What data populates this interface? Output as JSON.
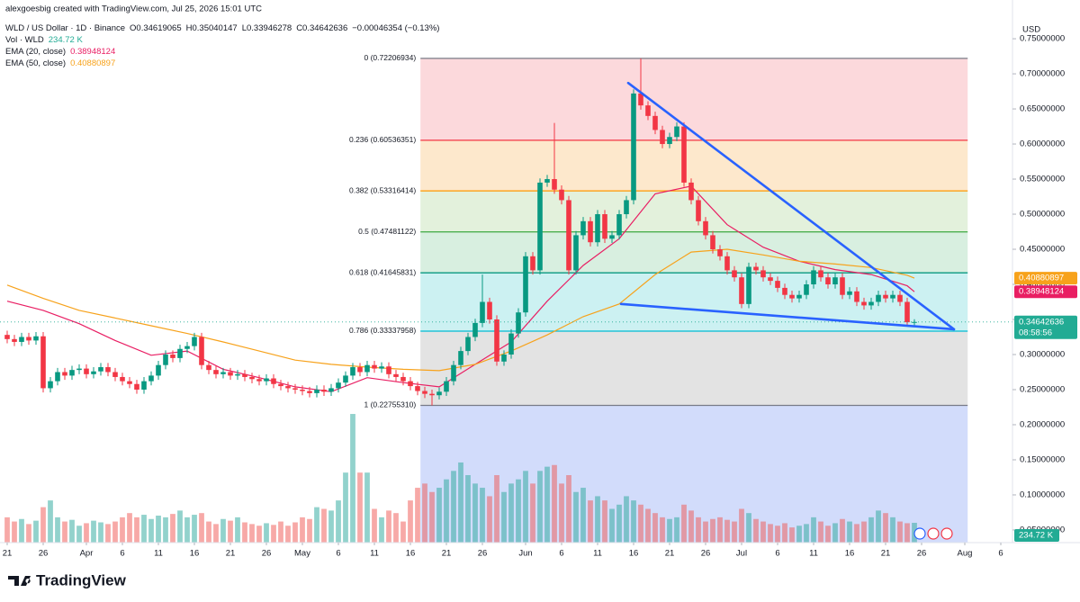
{
  "chart_data": {
    "type": "candlestick",
    "watermark": "alexgoesbig created with TradingView.com, Jul 25, 2026 15:01 UTC",
    "title": "WLD / US Dollar · 1D · Binance",
    "ohlc_legend": [
      "O0.34619065",
      "H0.35040147",
      "L0.33946278",
      "C0.34642636",
      "−0.00046354 (−0.13%)"
    ],
    "vol_legend": {
      "name": "Vol · WLD",
      "value": "234.72 K"
    },
    "currency": "USD",
    "brand": "TradingView",
    "countdown": "08:58:56",
    "up_color": "#089981",
    "down_color": "#f23645",
    "volume_up_color": "rgba(38,166,154,0.5)",
    "volume_down_color": "rgba(239,83,80,0.5)",
    "xlim": [
      -1,
      139.625
    ],
    "ylim": [
      0.032,
      0.777
    ],
    "vlim": [
      0,
      1600
    ],
    "xticks": [
      {
        "value": 0,
        "label": "21"
      },
      {
        "value": 5,
        "label": "26"
      },
      {
        "value": 11,
        "label": "Apr"
      },
      {
        "value": 16,
        "label": "6"
      },
      {
        "value": 21,
        "label": "11"
      },
      {
        "value": 26,
        "label": "16"
      },
      {
        "value": 31,
        "label": "21"
      },
      {
        "value": 36,
        "label": "26"
      },
      {
        "value": 41,
        "label": "May"
      },
      {
        "value": 46,
        "label": "6"
      },
      {
        "value": 51,
        "label": "11"
      },
      {
        "value": 56,
        "label": "16"
      },
      {
        "value": 61,
        "label": "21"
      },
      {
        "value": 66,
        "label": "26"
      },
      {
        "value": 72,
        "label": "Jun"
      },
      {
        "value": 77,
        "label": "6"
      },
      {
        "value": 82,
        "label": "11"
      },
      {
        "value": 87,
        "label": "16"
      },
      {
        "value": 92,
        "label": "21"
      },
      {
        "value": 97,
        "label": "26"
      },
      {
        "value": 102,
        "label": "Jul"
      },
      {
        "value": 107,
        "label": "6"
      },
      {
        "value": 112,
        "label": "11"
      },
      {
        "value": 117,
        "label": "16"
      },
      {
        "value": 122,
        "label": "21"
      },
      {
        "value": 127,
        "label": "26"
      },
      {
        "value": 133,
        "label": "Aug"
      },
      {
        "value": 138,
        "label": "6"
      }
    ],
    "yticks": [
      {
        "value": 0.05,
        "label": "0.05000000"
      },
      {
        "value": 0.1,
        "label": "0.10000000"
      },
      {
        "value": 0.15,
        "label": "0.15000000"
      },
      {
        "value": 0.2,
        "label": "0.20000000"
      },
      {
        "value": 0.25,
        "label": "0.25000000"
      },
      {
        "value": 0.3,
        "label": "0.30000000"
      },
      {
        "value": 0.35,
        "label": "0.35000000"
      },
      {
        "value": 0.4,
        "label": "0.40000000"
      },
      {
        "value": 0.45,
        "label": "0.45000000"
      },
      {
        "value": 0.5,
        "label": "0.50000000"
      },
      {
        "value": 0.55,
        "label": "0.55000000"
      },
      {
        "value": 0.6,
        "label": "0.60000000"
      },
      {
        "value": 0.65,
        "label": "0.65000000"
      },
      {
        "value": 0.7,
        "label": "0.70000000"
      },
      {
        "value": 0.75,
        "label": "0.75000000"
      }
    ],
    "x": [
      0,
      1,
      2,
      3,
      4,
      5,
      6,
      7,
      8,
      9,
      10,
      11,
      12,
      13,
      14,
      15,
      16,
      17,
      18,
      19,
      20,
      21,
      22,
      23,
      24,
      25,
      26,
      27,
      28,
      29,
      30,
      31,
      32,
      33,
      34,
      35,
      36,
      37,
      38,
      39,
      40,
      41,
      42,
      43,
      44,
      45,
      46,
      47,
      48,
      49,
      50,
      51,
      52,
      53,
      54,
      55,
      56,
      57,
      58,
      59,
      60,
      61,
      62,
      63,
      64,
      65,
      66,
      67,
      68,
      69,
      70,
      71,
      72,
      73,
      74,
      75,
      76,
      77,
      78,
      79,
      80,
      81,
      82,
      83,
      84,
      85,
      86,
      87,
      88,
      89,
      90,
      91,
      92,
      93,
      94,
      95,
      96,
      97,
      98,
      99,
      100,
      101,
      102,
      103,
      104,
      105,
      106,
      107,
      108,
      109,
      110,
      111,
      112,
      113,
      114,
      115,
      116,
      117,
      118,
      119,
      120,
      121,
      122,
      123,
      124,
      125,
      126
    ],
    "open": [
      0.328,
      0.322,
      0.318,
      0.325,
      0.32,
      0.326,
      0.252,
      0.262,
      0.275,
      0.27,
      0.278,
      0.28,
      0.272,
      0.276,
      0.282,
      0.275,
      0.268,
      0.262,
      0.258,
      0.25,
      0.262,
      0.27,
      0.285,
      0.3,
      0.295,
      0.308,
      0.312,
      0.325,
      0.285,
      0.278,
      0.272,
      0.275,
      0.27,
      0.272,
      0.268,
      0.265,
      0.262,
      0.266,
      0.258,
      0.255,
      0.252,
      0.25,
      0.248,
      0.245,
      0.25,
      0.247,
      0.252,
      0.26,
      0.27,
      0.282,
      0.275,
      0.285,
      0.28,
      0.283,
      0.272,
      0.268,
      0.262,
      0.255,
      0.248,
      0.244,
      0.242,
      0.247,
      0.262,
      0.285,
      0.305,
      0.325,
      0.345,
      0.375,
      0.35,
      0.29,
      0.3,
      0.33,
      0.36,
      0.44,
      0.42,
      0.545,
      0.55,
      0.535,
      0.52,
      0.42,
      0.47,
      0.49,
      0.46,
      0.5,
      0.465,
      0.47,
      0.5,
      0.52,
      0.672,
      0.655,
      0.64,
      0.62,
      0.6,
      0.61,
      0.625,
      0.545,
      0.52,
      0.49,
      0.47,
      0.45,
      0.44,
      0.42,
      0.41,
      0.372,
      0.425,
      0.42,
      0.41,
      0.405,
      0.395,
      0.385,
      0.38,
      0.385,
      0.4,
      0.42,
      0.41,
      0.4,
      0.41,
      0.385,
      0.39,
      0.375,
      0.37,
      0.375,
      0.385,
      0.38,
      0.385,
      0.375,
      0.34619065
    ],
    "high": [
      0.334,
      0.328,
      0.331,
      0.331,
      0.332,
      0.332,
      0.268,
      0.281,
      0.281,
      0.284,
      0.286,
      0.286,
      0.282,
      0.288,
      0.288,
      0.281,
      0.274,
      0.268,
      0.264,
      0.268,
      0.276,
      0.291,
      0.306,
      0.306,
      0.314,
      0.318,
      0.331,
      0.331,
      0.291,
      0.284,
      0.281,
      0.281,
      0.278,
      0.278,
      0.274,
      0.271,
      0.272,
      0.272,
      0.264,
      0.261,
      0.258,
      0.256,
      0.254,
      0.256,
      0.256,
      0.258,
      0.266,
      0.276,
      0.288,
      0.288,
      0.291,
      0.291,
      0.289,
      0.289,
      0.278,
      0.274,
      0.268,
      0.261,
      0.254,
      0.25,
      0.253,
      0.268,
      0.291,
      0.311,
      0.331,
      0.351,
      0.414,
      0.381,
      0.356,
      0.306,
      0.336,
      0.366,
      0.446,
      0.446,
      0.551,
      0.556,
      0.63,
      0.541,
      0.526,
      0.476,
      0.496,
      0.496,
      0.506,
      0.506,
      0.476,
      0.506,
      0.526,
      0.678,
      0.72206934,
      0.661,
      0.646,
      0.626,
      0.616,
      0.631,
      0.631,
      0.551,
      0.526,
      0.496,
      0.476,
      0.456,
      0.446,
      0.426,
      0.416,
      0.431,
      0.431,
      0.426,
      0.416,
      0.411,
      0.401,
      0.391,
      0.391,
      0.406,
      0.426,
      0.426,
      0.416,
      0.416,
      0.416,
      0.396,
      0.396,
      0.381,
      0.381,
      0.391,
      0.391,
      0.391,
      0.391,
      0.381,
      0.35040147
    ],
    "low": [
      0.316,
      0.312,
      0.312,
      0.314,
      0.314,
      0.246,
      0.246,
      0.256,
      0.264,
      0.264,
      0.272,
      0.266,
      0.266,
      0.27,
      0.269,
      0.262,
      0.256,
      0.252,
      0.244,
      0.244,
      0.256,
      0.264,
      0.279,
      0.289,
      0.289,
      0.302,
      0.306,
      0.279,
      0.272,
      0.266,
      0.266,
      0.264,
      0.264,
      0.262,
      0.259,
      0.256,
      0.256,
      0.252,
      0.249,
      0.246,
      0.244,
      0.242,
      0.239,
      0.239,
      0.241,
      0.241,
      0.246,
      0.254,
      0.264,
      0.269,
      0.269,
      0.274,
      0.274,
      0.266,
      0.262,
      0.256,
      0.249,
      0.242,
      0.238,
      0.2276,
      0.236,
      0.241,
      0.256,
      0.279,
      0.299,
      0.319,
      0.339,
      0.344,
      0.284,
      0.284,
      0.294,
      0.324,
      0.354,
      0.414,
      0.414,
      0.539,
      0.529,
      0.514,
      0.414,
      0.414,
      0.464,
      0.454,
      0.454,
      0.459,
      0.459,
      0.464,
      0.494,
      0.514,
      0.649,
      0.634,
      0.614,
      0.594,
      0.594,
      0.604,
      0.539,
      0.514,
      0.484,
      0.464,
      0.444,
      0.434,
      0.414,
      0.404,
      0.366,
      0.366,
      0.414,
      0.404,
      0.399,
      0.389,
      0.379,
      0.374,
      0.374,
      0.379,
      0.394,
      0.404,
      0.394,
      0.394,
      0.379,
      0.379,
      0.369,
      0.364,
      0.364,
      0.369,
      0.374,
      0.374,
      0.369,
      0.34,
      0.33946278
    ],
    "close": [
      0.322,
      0.318,
      0.325,
      0.32,
      0.326,
      0.252,
      0.262,
      0.275,
      0.27,
      0.278,
      0.28,
      0.272,
      0.276,
      0.282,
      0.275,
      0.268,
      0.262,
      0.258,
      0.25,
      0.262,
      0.27,
      0.285,
      0.3,
      0.295,
      0.308,
      0.312,
      0.325,
      0.285,
      0.278,
      0.272,
      0.275,
      0.27,
      0.272,
      0.268,
      0.265,
      0.262,
      0.266,
      0.258,
      0.255,
      0.252,
      0.25,
      0.248,
      0.245,
      0.25,
      0.247,
      0.252,
      0.26,
      0.27,
      0.282,
      0.275,
      0.285,
      0.28,
      0.283,
      0.272,
      0.268,
      0.262,
      0.255,
      0.248,
      0.244,
      0.242,
      0.247,
      0.262,
      0.285,
      0.305,
      0.325,
      0.345,
      0.375,
      0.35,
      0.29,
      0.3,
      0.33,
      0.36,
      0.44,
      0.42,
      0.545,
      0.55,
      0.535,
      0.52,
      0.42,
      0.47,
      0.49,
      0.46,
      0.5,
      0.465,
      0.47,
      0.5,
      0.52,
      0.672,
      0.655,
      0.64,
      0.62,
      0.6,
      0.61,
      0.625,
      0.545,
      0.52,
      0.49,
      0.47,
      0.45,
      0.44,
      0.42,
      0.41,
      0.372,
      0.425,
      0.42,
      0.41,
      0.405,
      0.395,
      0.385,
      0.38,
      0.385,
      0.4,
      0.42,
      0.41,
      0.4,
      0.41,
      0.385,
      0.39,
      0.375,
      0.37,
      0.375,
      0.385,
      0.38,
      0.385,
      0.375,
      0.346,
      0.34642636
    ],
    "volume": [
      300,
      250,
      280,
      220,
      260,
      420,
      500,
      300,
      250,
      270,
      200,
      230,
      260,
      240,
      220,
      250,
      300,
      350,
      300,
      330,
      280,
      320,
      300,
      340,
      380,
      300,
      330,
      350,
      250,
      220,
      280,
      260,
      300,
      240,
      220,
      200,
      230,
      210,
      250,
      200,
      240,
      300,
      280,
      420,
      400,
      380,
      500,
      830,
      1525,
      830,
      830,
      400,
      300,
      380,
      350,
      250,
      500,
      650,
      700,
      600,
      650,
      750,
      850,
      950,
      800,
      700,
      650,
      550,
      800,
      600,
      700,
      750,
      850,
      700,
      850,
      900,
      920,
      700,
      800,
      600,
      650,
      500,
      550,
      500,
      400,
      450,
      550,
      500,
      450,
      400,
      350,
      300,
      280,
      300,
      450,
      380,
      300,
      250,
      280,
      300,
      270,
      250,
      400,
      350,
      280,
      250,
      220,
      200,
      230,
      180,
      200,
      220,
      300,
      250,
      200,
      230,
      280,
      250,
      220,
      250,
      300,
      380,
      350,
      300,
      250,
      230,
      234.72
    ],
    "ema": [
      {
        "name": "EMA (20, close)",
        "color": "#e91e63",
        "x": [
          0,
          5,
          10,
          15,
          20,
          25,
          30,
          35,
          40,
          45,
          50,
          55,
          60,
          65,
          70,
          75,
          80,
          85,
          90,
          95,
          100,
          105,
          110,
          115,
          120,
          125,
          126
        ],
        "values": [
          0.376,
          0.363,
          0.344,
          0.32,
          0.299,
          0.305,
          0.279,
          0.267,
          0.254,
          0.247,
          0.267,
          0.26,
          0.254,
          0.286,
          0.318,
          0.376,
          0.427,
          0.465,
          0.529,
          0.54,
          0.485,
          0.453,
          0.433,
          0.421,
          0.414,
          0.398,
          0.38948124
        ]
      },
      {
        "name": "EMA (50, close)",
        "color": "#f7a21b",
        "x": [
          0,
          5,
          10,
          15,
          20,
          25,
          30,
          35,
          40,
          45,
          50,
          55,
          60,
          65,
          70,
          75,
          80,
          85,
          90,
          95,
          100,
          105,
          110,
          115,
          120,
          125,
          126
        ],
        "values": [
          0.399,
          0.38,
          0.363,
          0.352,
          0.341,
          0.33,
          0.318,
          0.305,
          0.292,
          0.286,
          0.282,
          0.279,
          0.277,
          0.286,
          0.305,
          0.328,
          0.354,
          0.372,
          0.414,
          0.446,
          0.45,
          0.442,
          0.433,
          0.429,
          0.424,
          0.413,
          0.40880897
        ]
      }
    ],
    "last_color": "#22ab94",
    "fib": {
      "x_range": [
        57.4,
        133.4
      ],
      "levels": [
        {
          "price": 0.72206934,
          "label": "0 (0.72206934)",
          "color": "#787b86",
          "fill": "#fcd9dc"
        },
        {
          "price": 0.60536351,
          "label": "0.236 (0.60536351)",
          "color": "#f23645",
          "fill": "#fde8cc"
        },
        {
          "price": 0.53316414,
          "label": "0.382 (0.53316414)",
          "color": "#ff9800",
          "fill": "#e3f1dc"
        },
        {
          "price": 0.47481122,
          "label": "0.5 (0.47481122)",
          "color": "#4caf50",
          "fill": "#d8efe0"
        },
        {
          "price": 0.41645831,
          "label": "0.618 (0.41645831)",
          "color": "#089981",
          "fill": "#ccf1f2"
        },
        {
          "price": 0.33337958,
          "label": "0.786 (0.33337958)",
          "color": "#00bcd4",
          "fill": "#e3e3e3"
        },
        {
          "price": 0.2275531,
          "label": "1 (0.22755310)",
          "color": "#787b86",
          "fill": "#d2dcfb"
        }
      ]
    },
    "trendlines": [
      {
        "x": [
          86.25,
          131.5
        ],
        "y": [
          0.687,
          0.336
        ],
        "color": "#2962ff"
      },
      {
        "x": [
          85.25,
          131.5
        ],
        "y": [
          0.372,
          0.336
        ],
        "color": "#2962ff"
      }
    ]
  }
}
